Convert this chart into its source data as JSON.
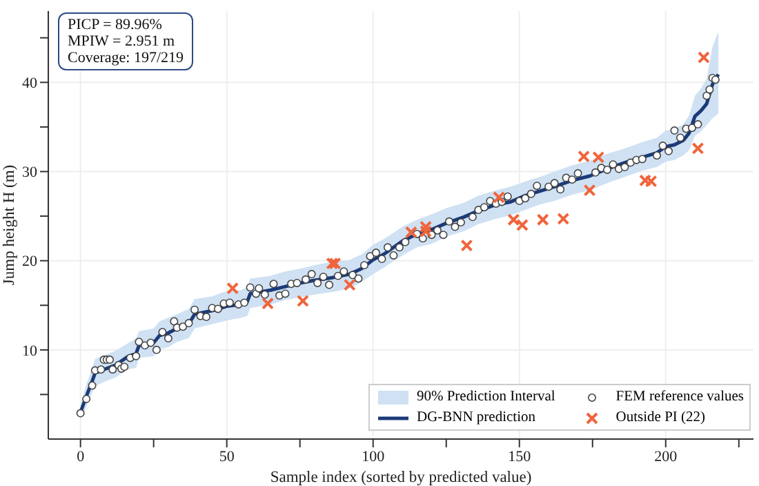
{
  "chart_data": {
    "type": "line",
    "xlabel": "Sample index (sorted by predicted value)",
    "ylabel": "Jump height H (m)",
    "xlim": [
      -11,
      230
    ],
    "ylim": [
      0,
      48
    ],
    "xticks": [
      0,
      {
        "value": 25,
        "label": null
      },
      50,
      {
        "value": 75,
        "label": null
      },
      100,
      {
        "value": 125,
        "label": null
      },
      150,
      {
        "value": 175,
        "label": null
      },
      200,
      {
        "value": 225,
        "label": null
      }
    ],
    "yticks": [
      {
        "value": 5,
        "label": null
      },
      10,
      {
        "value": 15,
        "label": null
      },
      20,
      {
        "value": 25,
        "label": null
      },
      30,
      {
        "value": 35,
        "label": null
      },
      40,
      {
        "value": 45,
        "label": null
      }
    ],
    "grid": true,
    "legend": "bottom right",
    "annotations": [
      "PICP = 89.96%",
      "MPIW = 2.951 m",
      "Coverage: 197/219"
    ],
    "series": [
      {
        "name": "90% Prediction Interval",
        "type": "area",
        "color": "#cfe1f3"
      },
      {
        "name": "DG-BNN prediction",
        "color": "#1b3a78",
        "marker": "none",
        "line_style": "solid",
        "x": [
          0,
          2,
          4,
          5,
          8,
          12,
          16,
          19,
          20,
          25,
          27,
          30,
          33,
          37,
          39,
          45,
          50,
          55,
          57,
          58,
          65,
          70,
          75,
          80,
          86,
          92,
          96,
          100,
          104,
          110,
          115,
          120,
          125,
          131,
          136,
          142,
          147,
          152,
          157,
          162,
          168,
          174,
          180,
          186,
          192,
          197,
          200,
          203,
          206,
          208,
          210,
          212,
          214,
          216,
          218
        ],
        "values": [
          3,
          4.8,
          6.5,
          7.4,
          7.8,
          8.3,
          9.2,
          9.6,
          10.5,
          10.8,
          11.6,
          11.9,
          12.4,
          12.9,
          14,
          14.4,
          14.9,
          15.1,
          15.4,
          16.3,
          16.7,
          17.1,
          17.5,
          17.8,
          18.1,
          18.5,
          19.1,
          20.1,
          20.8,
          22.2,
          23,
          23.5,
          24.2,
          24.9,
          25.6,
          26.3,
          26.6,
          27.3,
          27.8,
          28.3,
          29,
          29.5,
          30.3,
          31,
          31.6,
          32.1,
          32.8,
          33,
          33.5,
          34.3,
          36.2,
          36.8,
          37.6,
          39.8,
          40.9
        ],
        "lower": [
          2.2,
          3.6,
          5.2,
          5.9,
          6.4,
          6.9,
          7.8,
          8.0,
          9.1,
          9.3,
          10.1,
          10.3,
          10.9,
          11.3,
          12.4,
          12.9,
          13.3,
          13.6,
          13.8,
          14.7,
          15.1,
          15.6,
          15.9,
          16.2,
          16.5,
          16.9,
          17.6,
          18.5,
          19.3,
          20.6,
          21.5,
          21.9,
          22.7,
          23.3,
          24.1,
          24.7,
          25.1,
          25.7,
          26.3,
          26.7,
          27.4,
          27.9,
          28.7,
          29.4,
          30.1,
          30.5,
          31.1,
          31.3,
          31.8,
          32.4,
          34.0,
          34.5,
          35.2,
          36.0,
          36.5
        ],
        "upper": [
          3.8,
          6.1,
          8.0,
          9.0,
          9.4,
          9.9,
          10.7,
          11.3,
          12.1,
          12.4,
          13.2,
          13.6,
          14.0,
          14.6,
          15.7,
          16.0,
          16.6,
          16.7,
          17.1,
          18.0,
          18.3,
          18.8,
          19.1,
          19.5,
          19.9,
          20.1,
          20.7,
          21.8,
          22.5,
          23.8,
          24.6,
          25.2,
          25.9,
          26.5,
          27.3,
          27.9,
          28.3,
          28.9,
          29.4,
          30.0,
          30.7,
          31.2,
          32.0,
          32.6,
          33.3,
          33.8,
          34.6,
          34.8,
          35.3,
          36.3,
          38.5,
          39.3,
          40.4,
          44.0,
          45.7
        ]
      },
      {
        "name": "FEM reference values",
        "type": "scatter",
        "color": "#444444",
        "marker": "circle",
        "x": [
          0,
          2,
          4,
          5,
          7,
          8,
          9,
          10,
          11,
          13,
          14,
          15,
          17,
          19,
          20,
          22,
          24,
          26,
          28,
          30,
          32,
          33,
          35,
          37,
          39,
          41,
          43,
          45,
          47,
          49,
          51,
          54,
          56,
          58,
          60,
          61,
          63,
          66,
          68,
          70,
          72,
          74,
          77,
          79,
          81,
          83,
          85,
          88,
          90,
          93,
          95,
          97,
          99,
          101,
          103,
          105,
          107,
          109,
          111,
          115,
          117,
          120,
          122,
          124,
          126,
          128,
          130,
          134,
          136,
          138,
          140,
          142,
          144,
          146,
          150,
          152,
          154,
          156,
          160,
          162,
          164,
          166,
          168,
          170,
          176,
          178,
          180,
          182,
          184,
          186,
          188,
          190,
          192,
          197,
          199,
          201,
          203,
          205,
          207,
          209,
          211,
          214,
          215,
          216,
          217
        ],
        "values": [
          2.9,
          4.5,
          6,
          7.7,
          7.8,
          8.9,
          8.9,
          8.9,
          7.8,
          8.3,
          7.9,
          8.1,
          9.1,
          9.3,
          10.9,
          10.5,
          10.8,
          10,
          12,
          11.3,
          13.2,
          12.5,
          12.6,
          13,
          14.5,
          13.8,
          13.7,
          14.7,
          14.6,
          15.2,
          15.3,
          15.1,
          15.3,
          17,
          16.3,
          16.9,
          16.2,
          17.4,
          16.1,
          16.3,
          17.4,
          17.5,
          17.9,
          18.5,
          17.5,
          18.2,
          17.3,
          18.3,
          18.8,
          18.4,
          18,
          19.5,
          20.5,
          20.9,
          20.2,
          21.5,
          20.6,
          21.5,
          22.1,
          23,
          22.5,
          22.9,
          23.4,
          22.9,
          24.4,
          23.8,
          24.3,
          24.9,
          25.7,
          26,
          26.7,
          26.4,
          26.6,
          27.2,
          26.7,
          27,
          27.5,
          28.4,
          28.3,
          28.7,
          28,
          29.3,
          29.1,
          29.8,
          29.9,
          30.4,
          30.2,
          30.8,
          30.3,
          30.5,
          31,
          31.3,
          31.4,
          31.8,
          32.9,
          32.3,
          34.6,
          33.8,
          34.8,
          34.9,
          35.3,
          38.5,
          39.2,
          40.5,
          40.3
        ]
      },
      {
        "name": "Outside PI (22)",
        "type": "scatter",
        "color": "#f0643c",
        "marker": "cross",
        "x": [
          52,
          64,
          76,
          86,
          87,
          92,
          113,
          118,
          118,
          132,
          143,
          148,
          151,
          158,
          165,
          172,
          174,
          177,
          193,
          195,
          211,
          213
        ],
        "values": [
          16.9,
          15.2,
          15.5,
          19.7,
          19.7,
          17.3,
          23.2,
          23.8,
          23.3,
          21.7,
          27.1,
          24.6,
          24,
          24.6,
          24.7,
          31.7,
          27.9,
          31.6,
          29,
          28.9,
          32.6,
          42.8
        ]
      }
    ]
  }
}
